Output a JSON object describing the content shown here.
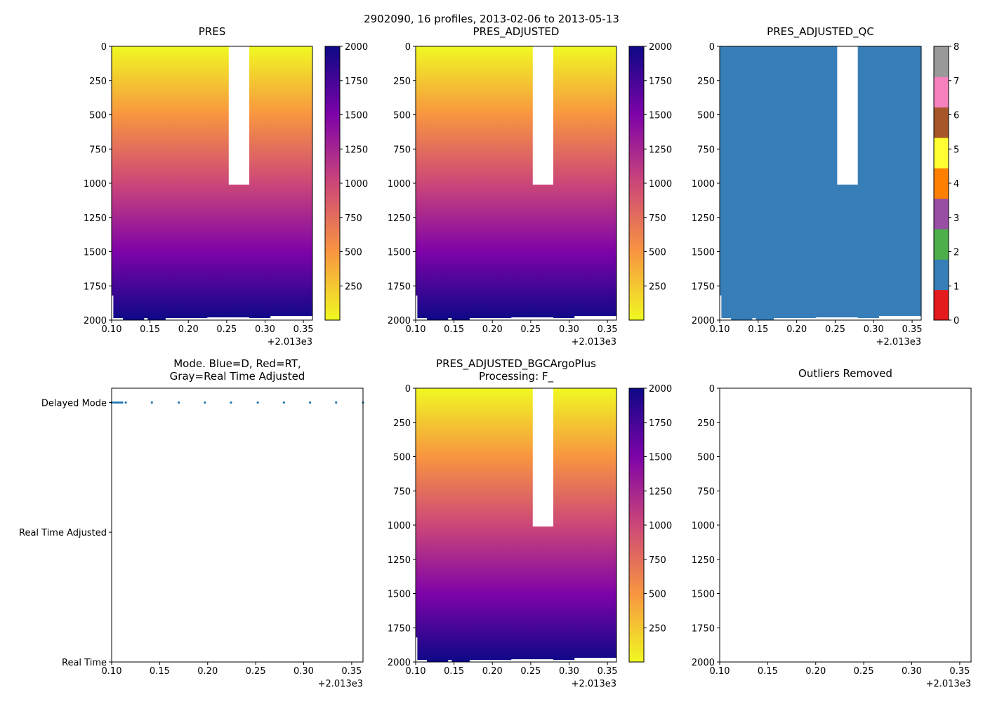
{
  "suptitle": "2902090, 16 profiles, 2013-02-06 to 2013-05-13",
  "profile_columns": [
    {
      "x0": 0.1,
      "x1": 0.1022,
      "pmin": 0,
      "pmax": 1820
    },
    {
      "x0": 0.1022,
      "x1": 0.1147,
      "pmin": 0,
      "pmax": 1985
    },
    {
      "x0": 0.1147,
      "x1": 0.1419,
      "pmin": 0,
      "pmax": 2000
    },
    {
      "x0": 0.1419,
      "x1": 0.147,
      "pmin": 0,
      "pmax": 1985
    },
    {
      "x0": 0.147,
      "x1": 0.1699,
      "pmin": 0,
      "pmax": 2000
    },
    {
      "x0": 0.1699,
      "x1": 0.2243,
      "pmin": 0,
      "pmax": 1985
    },
    {
      "x0": 0.2243,
      "x1": 0.2522,
      "pmin": 0,
      "pmax": 1980
    },
    {
      "x0": 0.2522,
      "x1": 0.2794,
      "pmin": 1010,
      "pmax": 1980
    },
    {
      "x0": 0.2794,
      "x1": 0.3066,
      "pmin": 0,
      "pmax": 1985
    },
    {
      "x0": 0.3066,
      "x1": 0.3618,
      "pmin": 0,
      "pmax": 1970
    }
  ],
  "chart_data": [
    {
      "type": "heatmap",
      "title": [
        "PRES"
      ],
      "xlim": [
        0.1,
        0.3618
      ],
      "ylim": [
        2000,
        0
      ],
      "xticks": [
        "0.10",
        "0.15",
        "0.20",
        "0.25",
        "0.30",
        "0.35"
      ],
      "offset_label": "+2.013e3",
      "yticks": [
        0,
        250,
        500,
        750,
        1000,
        1250,
        1500,
        1750,
        2000
      ],
      "fill": "plasma_r",
      "colorbar": {
        "range": [
          0,
          2000
        ],
        "ticks": [
          250,
          500,
          750,
          1000,
          1250,
          1500,
          1750,
          2000
        ]
      }
    },
    {
      "type": "heatmap",
      "title": [
        "PRES_ADJUSTED"
      ],
      "xlim": [
        0.1,
        0.3618
      ],
      "ylim": [
        2000,
        0
      ],
      "xticks": [
        "0.10",
        "0.15",
        "0.20",
        "0.25",
        "0.30",
        "0.35"
      ],
      "offset_label": "+2.013e3",
      "yticks": [
        0,
        250,
        500,
        750,
        1000,
        1250,
        1500,
        1750,
        2000
      ],
      "fill": "plasma_r",
      "colorbar": {
        "range": [
          0,
          2000
        ],
        "ticks": [
          250,
          500,
          750,
          1000,
          1250,
          1500,
          1750,
          2000
        ]
      }
    },
    {
      "type": "heatmap",
      "title": [
        "PRES_ADJUSTED_QC"
      ],
      "xlim": [
        0.1,
        0.3618
      ],
      "ylim": [
        2000,
        0
      ],
      "xticks": [
        "0.10",
        "0.15",
        "0.20",
        "0.25",
        "0.30",
        "0.35"
      ],
      "offset_label": "+2.013e3",
      "yticks": [
        0,
        250,
        500,
        750,
        1000,
        1250,
        1500,
        1750,
        2000
      ],
      "fill": "#377eb8",
      "qc_value": 1,
      "colorbar": {
        "range": [
          0,
          8
        ],
        "ticks": [
          0,
          1,
          2,
          3,
          4,
          5,
          6,
          7,
          8
        ],
        "colors": [
          "#e41a1c",
          "#377eb8",
          "#4daf4a",
          "#984ea3",
          "#ff7f00",
          "#ffff33",
          "#a65628",
          "#f781bf",
          "#999999"
        ]
      }
    },
    {
      "type": "scatter",
      "title": [
        "Mode. Blue=D, Red=RT,",
        "Gray=Real Time Adjusted"
      ],
      "xlim": [
        0.1,
        0.3618
      ],
      "ylim": [
        0,
        2.11
      ],
      "xticks": [
        "0.10",
        "0.15",
        "0.20",
        "0.25",
        "0.30",
        "0.35"
      ],
      "offset_label": "+2.013e3",
      "ytick_values": [
        2,
        1,
        0
      ],
      "yticks": [
        "Delayed Mode",
        "Real Time Adjusted",
        "Real Time"
      ],
      "color": "#1f77b4",
      "x": [
        0.1,
        0.1022,
        0.1044,
        0.1066,
        0.1088,
        0.111,
        0.1147,
        0.1419,
        0.1699,
        0.1971,
        0.2243,
        0.2522,
        0.2794,
        0.3066,
        0.3338,
        0.3618
      ],
      "y": [
        2,
        2,
        2,
        2,
        2,
        2,
        2,
        2,
        2,
        2,
        2,
        2,
        2,
        2,
        2,
        2
      ]
    },
    {
      "type": "heatmap",
      "title": [
        "PRES_ADJUSTED_BGCArgoPlus",
        "Processing: F_"
      ],
      "xlim": [
        0.1,
        0.3618
      ],
      "ylim": [
        2000,
        0
      ],
      "xticks": [
        "0.10",
        "0.15",
        "0.20",
        "0.25",
        "0.30",
        "0.35"
      ],
      "offset_label": "+2.013e3",
      "yticks": [
        0,
        250,
        500,
        750,
        1000,
        1250,
        1500,
        1750,
        2000
      ],
      "fill": "plasma_r",
      "colorbar": {
        "range": [
          0,
          2000
        ],
        "ticks": [
          250,
          500,
          750,
          1000,
          1250,
          1500,
          1750,
          2000
        ]
      }
    },
    {
      "type": "scatter",
      "title": [
        "Outliers Removed"
      ],
      "xlim": [
        0.1,
        0.3618
      ],
      "ylim": [
        2000,
        0
      ],
      "xticks": [
        "0.10",
        "0.15",
        "0.20",
        "0.25",
        "0.30",
        "0.35"
      ],
      "offset_label": "+2.013e3",
      "yticks": [
        0,
        250,
        500,
        750,
        1000,
        1250,
        1500,
        1750,
        2000
      ],
      "x": [],
      "y": []
    }
  ]
}
